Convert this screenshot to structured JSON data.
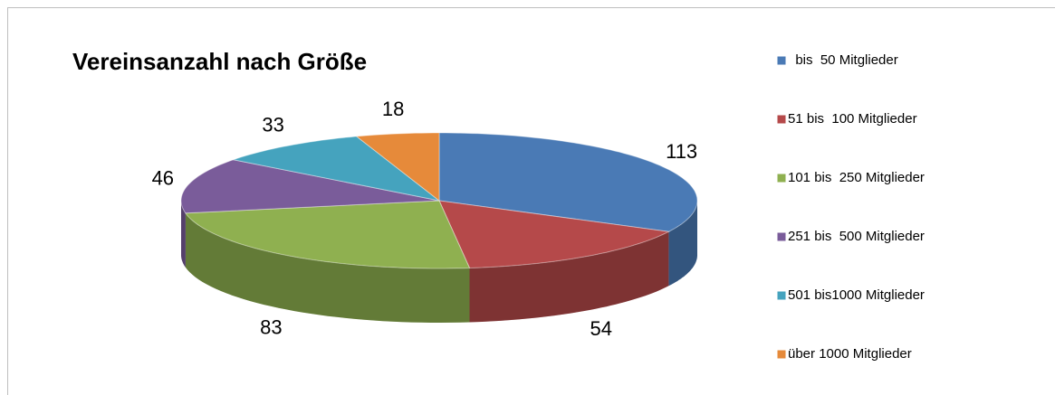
{
  "chart_data": {
    "type": "pie3d",
    "title": "Vereinsanzahl nach Größe",
    "categories": [
      "  bis  50 Mitglieder",
      "51 bis  100 Mitglieder",
      "101 bis  250 Mitglieder",
      "251 bis  500 Mitglieder",
      "501 bis1000 Mitglieder",
      "über 1000 Mitglieder"
    ],
    "values": [
      113,
      54,
      83,
      46,
      33,
      18
    ],
    "colors": [
      "#4a7ab5",
      "#b5494a",
      "#8fb050",
      "#7a5c9a",
      "#45a3be",
      "#e68a3a"
    ],
    "legend": "right"
  }
}
